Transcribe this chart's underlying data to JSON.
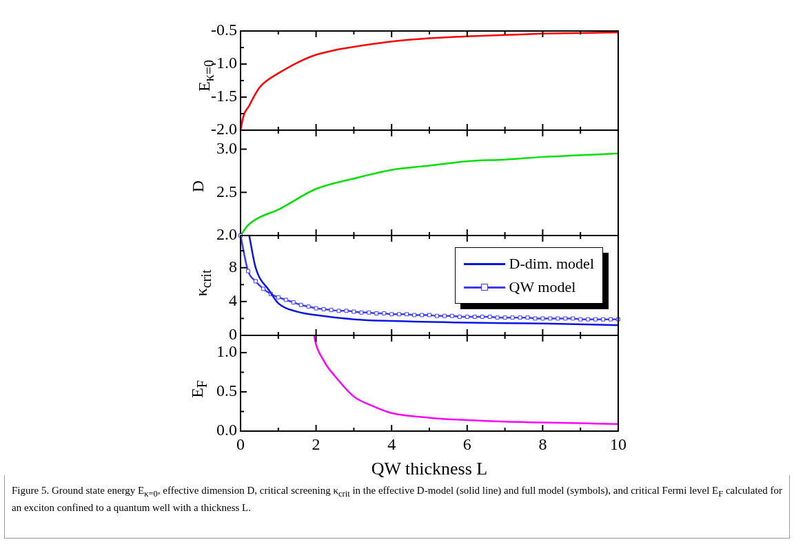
{
  "chart_data": [
    {
      "type": "line",
      "ylabel": "E$_{κ=0}$",
      "xlim": [
        0,
        10
      ],
      "xticks": [
        0,
        {
          "value": 1,
          "label": null
        },
        2,
        {
          "value": 3,
          "label": null
        },
        4,
        {
          "value": 5,
          "label": null
        },
        6,
        {
          "value": 7,
          "label": null
        },
        8,
        {
          "value": 9,
          "label": null
        },
        10
      ],
      "ylim": [
        -2,
        -0.5
      ],
      "yticks": [
        {
          "value": -2,
          "label": "-2.0"
        },
        {
          "value": -1.75,
          "label": null
        },
        {
          "value": -1.5,
          "label": "-1.5"
        },
        {
          "value": -1.25,
          "label": null
        },
        {
          "value": -1,
          "label": "-1.0"
        },
        {
          "value": -0.75,
          "label": null
        },
        {
          "value": -0.5,
          "label": "-0.5"
        }
      ],
      "tick_labels": "y",
      "grid": false,
      "legend": false,
      "series": [
        {
          "color": "#ff0000",
          "x": [
            0,
            0.05,
            0.1,
            0.23,
            0.3,
            0.51,
            0.7,
            1,
            1.5,
            2,
            2.5,
            3,
            4,
            5,
            6,
            7,
            8,
            9,
            10
          ],
          "values": [
            -2,
            -1.85,
            -1.75,
            -1.63,
            -1.55,
            -1.35,
            -1.25,
            -1.14,
            -0.98,
            -0.86,
            -0.79,
            -0.74,
            -0.66,
            -0.61,
            -0.58,
            -0.56,
            -0.54,
            -0.53,
            -0.52
          ]
        }
      ]
    },
    {
      "type": "line",
      "ylabel": "D",
      "xlim": [
        0,
        10
      ],
      "xticks": [
        0,
        {
          "value": 1,
          "label": null
        },
        2,
        {
          "value": 3,
          "label": null
        },
        4,
        {
          "value": 5,
          "label": null
        },
        6,
        {
          "value": 7,
          "label": null
        },
        8,
        {
          "value": 9,
          "label": null
        },
        10
      ],
      "ylim": [
        2,
        3.22
      ],
      "yticks": [
        {
          "value": 2,
          "label": "2.0"
        },
        {
          "value": 2.5,
          "label": "2.5"
        },
        {
          "value": 3,
          "label": "3.0"
        }
      ],
      "tick_labels": "y",
      "grid": false,
      "legend": false,
      "series": [
        {
          "color": "#00e000",
          "x": [
            0,
            0.2,
            0.5,
            1,
            2,
            3,
            4,
            5,
            6,
            7,
            8,
            9,
            10
          ],
          "values": [
            2,
            2.12,
            2.21,
            2.3,
            2.54,
            2.66,
            2.76,
            2.81,
            2.86,
            2.88,
            2.91,
            2.93,
            2.95
          ]
        }
      ]
    },
    {
      "type": "line",
      "ylabel": "κ$_{crit}$",
      "xlim": [
        0,
        10
      ],
      "xticks": [
        0,
        {
          "value": 1,
          "label": null
        },
        2,
        {
          "value": 3,
          "label": null
        },
        4,
        {
          "value": 5,
          "label": null
        },
        6,
        {
          "value": 7,
          "label": null
        },
        8,
        {
          "value": 9,
          "label": null
        },
        10
      ],
      "ylim": [
        0,
        11.8
      ],
      "yticks": [
        0,
        {
          "value": 2,
          "label": null
        },
        4,
        {
          "value": 6,
          "label": null
        },
        8,
        {
          "value": 10,
          "label": null
        }
      ],
      "tick_labels": "y",
      "grid": false,
      "legend": "top right",
      "series": [
        {
          "name": "D-dim. model",
          "color": "#0a14e6",
          "marker": "none",
          "x": [
            0.23,
            0.4,
            0.76,
            1,
            1.5,
            2,
            3,
            4,
            6,
            8,
            10
          ],
          "values": [
            11.8,
            8,
            5.3,
            3.8,
            2.8,
            2.4,
            1.9,
            1.7,
            1.5,
            1.4,
            1.2
          ]
        },
        {
          "name": "QW model",
          "color": "#3c3cf5",
          "marker": "square",
          "x": [
            0,
            0.2,
            0.4,
            0.6,
            0.8,
            1,
            1.2,
            1.4,
            1.6,
            1.8,
            2,
            2.2,
            2.4,
            2.6,
            2.8,
            3,
            3.2,
            3.4,
            3.6,
            3.8,
            4,
            4.2,
            4.4,
            4.6,
            4.8,
            5,
            5.2,
            5.4,
            5.6,
            5.8,
            6,
            6.2,
            6.4,
            6.6,
            6.8,
            7,
            7.2,
            7.4,
            7.6,
            7.8,
            8,
            8.2,
            8.4,
            8.6,
            8.8,
            9,
            9.2,
            9.4,
            9.6,
            9.8,
            10
          ],
          "values": [
            11.8,
            7.6,
            6.4,
            5.5,
            4.9,
            4.5,
            4.2,
            3.9,
            3.6,
            3.4,
            3.2,
            3.1,
            3,
            2.9,
            2.9,
            2.8,
            2.7,
            2.7,
            2.6,
            2.6,
            2.5,
            2.5,
            2.5,
            2.4,
            2.4,
            2.4,
            2.3,
            2.3,
            2.3,
            2.2,
            2.2,
            2.2,
            2.2,
            2.2,
            2.1,
            2.1,
            2.1,
            2.1,
            2.1,
            2,
            2,
            2,
            2,
            2,
            2,
            1.9,
            1.9,
            1.9,
            1.9,
            1.9,
            1.9
          ]
        }
      ]
    },
    {
      "type": "line",
      "ylabel": "E$_{F}$",
      "xlabel": "QW thickness L",
      "xlim": [
        0,
        10
      ],
      "xticks": [
        0,
        {
          "value": 1,
          "label": null
        },
        2,
        {
          "value": 3,
          "label": null
        },
        4,
        {
          "value": 5,
          "label": null
        },
        6,
        {
          "value": 7,
          "label": null
        },
        8,
        {
          "value": 9,
          "label": null
        },
        10
      ],
      "ylim": [
        0,
        1.22
      ],
      "yticks": [
        {
          "value": 0,
          "label": "0.0"
        },
        {
          "value": 0.25,
          "label": null
        },
        {
          "value": 0.5,
          "label": "0.5"
        },
        {
          "value": 0.75,
          "label": null
        },
        {
          "value": 1,
          "label": "1.0"
        }
      ],
      "grid": false,
      "legend": false,
      "annotations": [
        "Figure 5. Ground state energy E$_{κ=0}$, effective dimension D, critical screening κ$_{crit}$ in the effective D-model (solid line) and full model (symbols), and critical Fermi level E$_{F}$ calculated for an exciton confined to a quantum well with a thickness L."
      ],
      "series": [
        {
          "color": "#ff00ff",
          "x": [
            1.95,
            2,
            2.2,
            2.3,
            2.5,
            3,
            3.5,
            4,
            5,
            6,
            7,
            8,
            9,
            10
          ],
          "values": [
            1.21,
            1.1,
            0.9,
            0.82,
            0.7,
            0.44,
            0.32,
            0.23,
            0.17,
            0.14,
            0.12,
            0.11,
            0.1,
            0.09
          ]
        }
      ]
    }
  ]
}
